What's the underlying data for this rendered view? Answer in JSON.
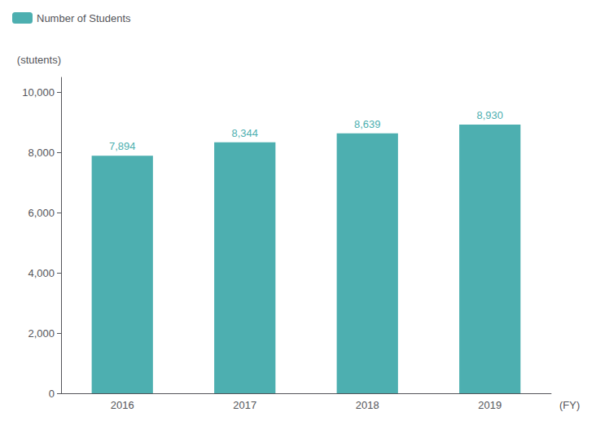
{
  "chart_data": {
    "type": "bar",
    "categories": [
      "2016",
      "2017",
      "2018",
      "2019"
    ],
    "series": [
      {
        "name": "Number of Students",
        "color": "#4DAFB0",
        "values": [
          7894,
          8344,
          8639,
          8930
        ],
        "value_labels": [
          "7,894",
          "8,344",
          "8,639",
          "8,930"
        ]
      }
    ],
    "ylim": [
      0,
      10500
    ],
    "yticks": [
      0,
      {
        "value": 2000,
        "label": "2,000"
      },
      {
        "value": 4000,
        "label": "4,000"
      },
      {
        "value": 6000,
        "label": "6,000"
      },
      {
        "value": 8000,
        "label": "8,000"
      },
      {
        "value": 10000,
        "label": "10,000"
      }
    ],
    "ylabel": "(stutents)",
    "xlabel": "(FY)",
    "legend": "upper left",
    "data_labels": true,
    "grid": false
  }
}
